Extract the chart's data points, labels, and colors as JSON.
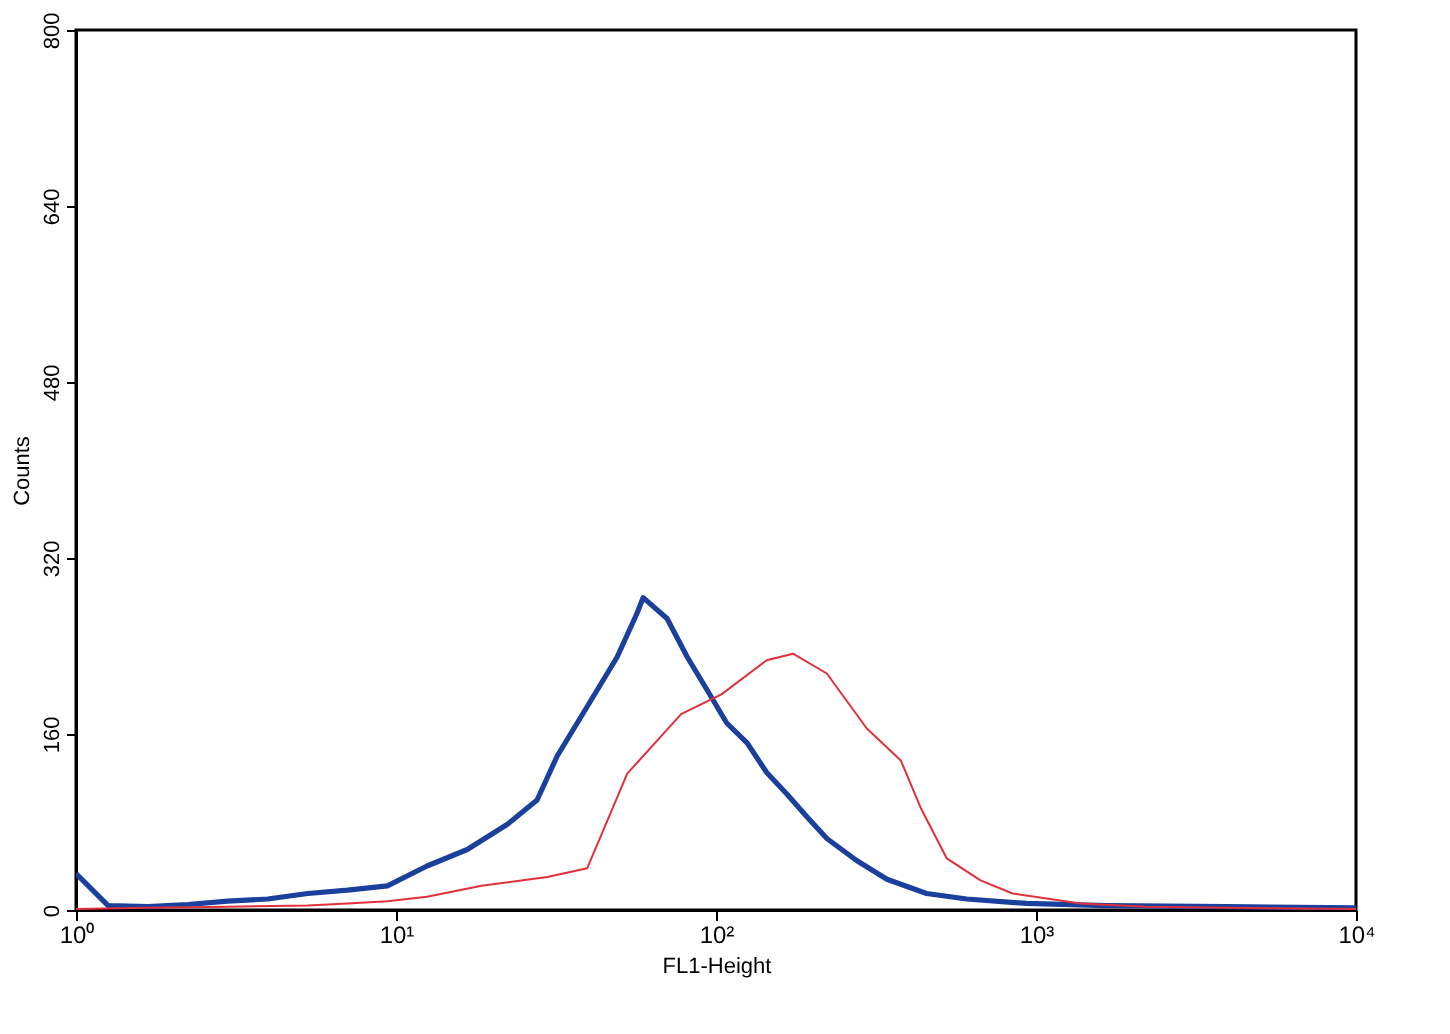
{
  "chart_data": {
    "type": "line",
    "xlabel": "FL1-Height",
    "ylabel": "Counts",
    "log": "x",
    "grid": false,
    "marker": "none",
    "line_style": "solid",
    "xlim": [
      1,
      10000
    ],
    "xticks": [
      {
        "value": 1,
        "label": "10⁰"
      },
      {
        "value": 10,
        "label": "10¹"
      },
      {
        "value": 100,
        "label": "10²"
      },
      {
        "value": 1000,
        "label": "10³"
      },
      {
        "value": 10000,
        "label": "10⁴"
      }
    ],
    "ylim": [
      0,
      800
    ],
    "yticks": [
      0,
      160,
      320,
      480,
      640,
      800
    ],
    "series": [
      {
        "color": "#e0303c",
        "x": [
          1,
          1.68,
          2.98,
          5.3,
          7.06,
          9.4,
          12.5,
          18.5,
          29.7,
          39.6,
          52.8,
          77.8,
          104,
          144,
          174,
          222,
          296,
          378,
          436,
          526,
          671,
          845,
          1377,
          2213,
          3930,
          10000
        ],
        "values": [
          1,
          2,
          3,
          4,
          6,
          8,
          12,
          22,
          30,
          38,
          124,
          178,
          196,
          227,
          233,
          215,
          165,
          136,
          93,
          47,
          27,
          15,
          6,
          3,
          2,
          1
        ]
      },
      {
        "color": "#1a3f9c",
        "x": [
          1,
          1.26,
          1.68,
          2.24,
          2.98,
          3.97,
          5.3,
          7.06,
          9.4,
          12.5,
          16.7,
          22.3,
          27.6,
          31.9,
          39.6,
          49.1,
          56.7,
          59.2,
          70.3,
          81.3,
          93.8,
          108,
          125,
          144,
          167,
          192,
          222,
          275,
          342,
          455,
          607,
          934,
          1660,
          3930,
          10000
        ],
        "values": [
          33,
          4,
          3,
          5,
          8,
          10,
          15,
          18,
          22,
          40,
          55,
          78,
          100,
          140,
          185,
          230,
          270,
          284,
          265,
          230,
          200,
          170,
          152,
          125,
          105,
          85,
          65,
          45,
          28,
          15,
          10,
          6,
          4,
          3,
          2
        ]
      }
    ]
  }
}
